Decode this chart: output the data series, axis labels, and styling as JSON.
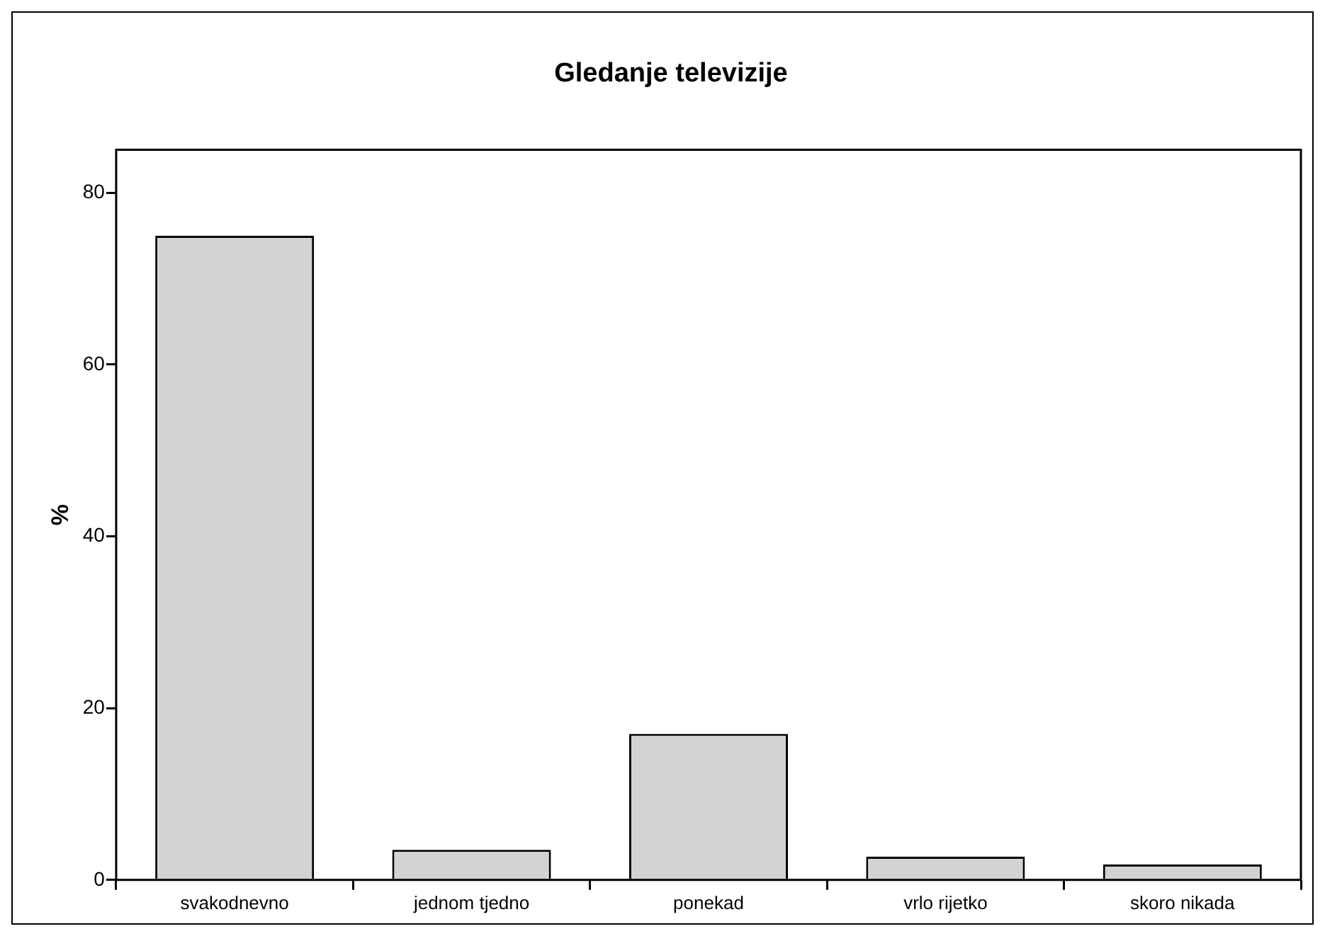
{
  "chart_data": {
    "type": "bar",
    "title": "Gledanje televizije",
    "ylabel": "%",
    "categories": [
      "svakodnevno",
      "jednom tjedno",
      "ponekad",
      "vrlo rijetko",
      "skoro nikada"
    ],
    "values": [
      75,
      3.5,
      17,
      2.7,
      1.8
    ],
    "color": "#d3d3d3",
    "ylim": [
      0,
      85
    ],
    "yticks": [
      0,
      20,
      40,
      60,
      80
    ],
    "grid": false,
    "legend": false
  }
}
